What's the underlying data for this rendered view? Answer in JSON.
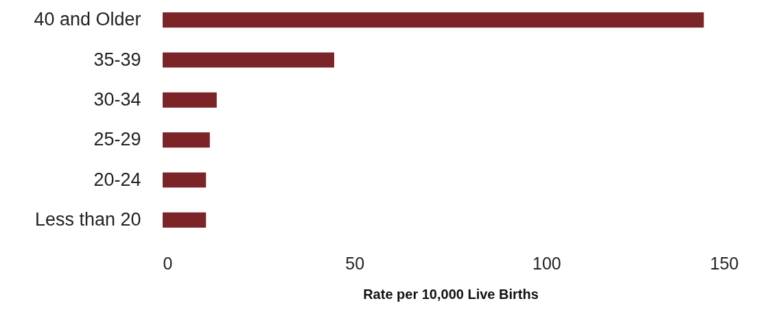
{
  "chart_data": {
    "type": "bar",
    "orientation": "horizontal",
    "xlabel": "Rate per 10,000 Live Births",
    "categories": [
      "40 and Older",
      "35-39",
      "30-34",
      "25-29",
      "20-24",
      "Less than 20"
    ],
    "values": [
      141,
      44.7,
      14.1,
      12.3,
      11.3,
      11.3
    ],
    "color": "#7b2529",
    "xlim": [
      0,
      150
    ],
    "xticks": [
      0,
      50,
      100,
      150
    ],
    "grid": false
  }
}
